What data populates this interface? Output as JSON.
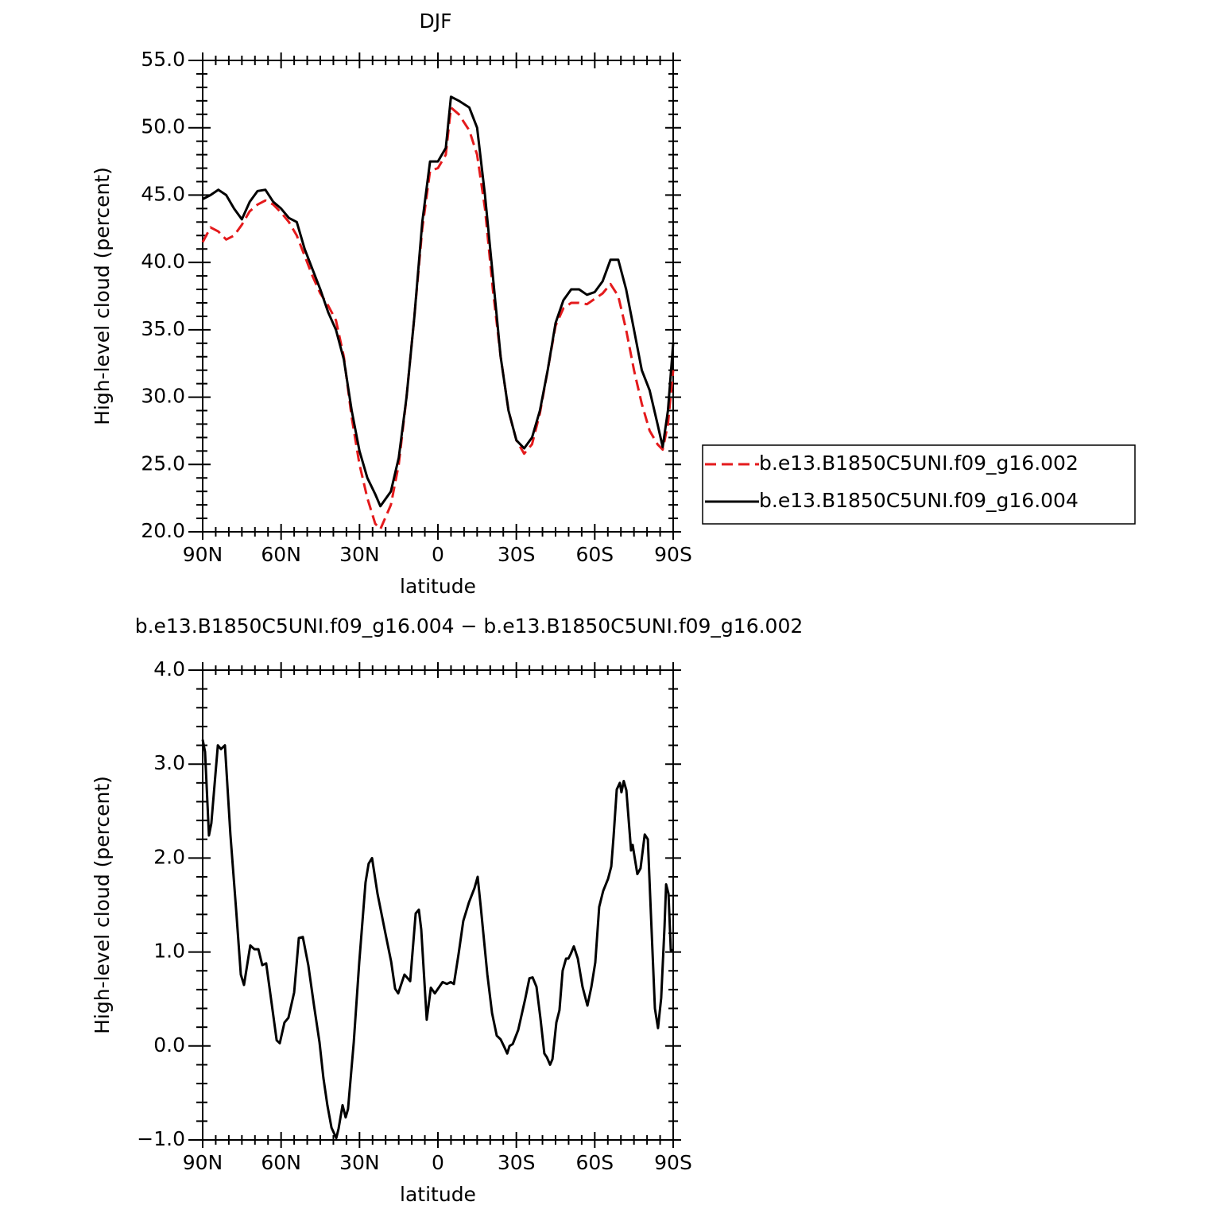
{
  "chart_data": [
    {
      "type": "line",
      "title": "DJF",
      "xlabel": "latitude",
      "ylabel": "High-level cloud (percent)",
      "xlim": [
        90,
        -90
      ],
      "xticks": [
        {
          "value": 90,
          "label": "90N"
        },
        {
          "value": 60,
          "label": "60N"
        },
        {
          "value": 30,
          "label": "30N"
        },
        0,
        {
          "value": -30,
          "label": "30S"
        },
        {
          "value": -60,
          "label": "60S"
        },
        {
          "value": -90,
          "label": "90S"
        }
      ],
      "ylim": [
        20,
        55
      ],
      "yticks": [
        {
          "value": 20,
          "label": "20.0"
        },
        {
          "value": 25,
          "label": "25.0"
        },
        {
          "value": 30,
          "label": "30.0"
        },
        {
          "value": 35,
          "label": "35.0"
        },
        {
          "value": 40,
          "label": "40.0"
        },
        {
          "value": 45,
          "label": "45.0"
        },
        {
          "value": 50,
          "label": "50.0"
        },
        {
          "value": 55,
          "label": "55.0"
        }
      ],
      "legend": "right",
      "x": [
        90,
        87,
        84,
        81,
        78,
        75,
        72,
        69,
        66,
        63,
        60,
        57,
        54,
        51,
        48,
        45,
        42,
        39,
        36,
        33,
        30,
        27,
        24,
        22,
        18,
        15,
        12,
        9,
        6,
        3,
        0,
        -3,
        -5,
        -8,
        -12,
        -15,
        -18,
        -21,
        -24,
        -27,
        -30,
        -33,
        -36,
        -39,
        -42,
        -45,
        -48,
        -51,
        -54,
        -57,
        -60,
        -63,
        -66,
        -69,
        -72,
        -75,
        -78,
        -81,
        -84,
        -86,
        -88,
        -90
      ],
      "series": [
        {
          "name": "b.e13.B1850C5UNI.f09_g16.002",
          "color": "#e41a1c",
          "style": "dashed",
          "values": [
            41.5,
            42.6,
            42.3,
            41.7,
            42.0,
            42.8,
            43.8,
            44.3,
            44.6,
            44.3,
            43.7,
            43.0,
            42.0,
            40.5,
            39.0,
            37.7,
            36.8,
            35.7,
            33.0,
            28.5,
            25.0,
            22.5,
            20.6,
            20.2,
            22.0,
            25.0,
            30.0,
            36.0,
            42.5,
            46.8,
            47.0,
            48.0,
            51.5,
            51.0,
            49.8,
            48.0,
            44.0,
            38.0,
            33.0,
            29.0,
            26.8,
            25.8,
            26.5,
            28.8,
            32.0,
            35.3,
            36.6,
            37.0,
            37.0,
            36.9,
            37.3,
            37.7,
            38.4,
            37.5,
            35.0,
            32.0,
            29.5,
            27.5,
            26.5,
            26.1,
            28.0,
            32.0
          ]
        },
        {
          "name": "b.e13.B1850C5UNI.f09_g16.004",
          "color": "#000000",
          "style": "solid",
          "values": [
            44.7,
            45.0,
            45.4,
            45.0,
            44.0,
            43.2,
            44.5,
            45.3,
            45.4,
            44.5,
            44.0,
            43.3,
            43.0,
            41.0,
            39.5,
            38.0,
            36.3,
            35.0,
            32.8,
            29.0,
            26.0,
            24.0,
            22.8,
            21.9,
            23.0,
            25.5,
            30.0,
            36.0,
            43.0,
            47.5,
            47.5,
            48.5,
            52.3,
            52.0,
            51.5,
            50.0,
            45.0,
            39.0,
            33.0,
            29.0,
            26.8,
            26.2,
            27.0,
            29.0,
            32.0,
            35.5,
            37.2,
            38.0,
            38.0,
            37.6,
            37.8,
            38.6,
            40.2,
            40.2,
            38.0,
            35.0,
            32.0,
            30.5,
            28.0,
            26.3,
            29.0,
            34.0
          ]
        }
      ]
    },
    {
      "type": "line",
      "title": "b.e13.B1850C5UNI.f09_g16.004 − b.e13.B1850C5UNI.f09_g16.002",
      "xlabel": "latitude",
      "ylabel": "High-level cloud (percent)",
      "xlim": [
        90,
        -90
      ],
      "xticks": [
        {
          "value": 90,
          "label": "90N"
        },
        {
          "value": 60,
          "label": "60N"
        },
        {
          "value": 30,
          "label": "30N"
        },
        0,
        {
          "value": -30,
          "label": "30S"
        },
        {
          "value": -60,
          "label": "60S"
        },
        {
          "value": -90,
          "label": "90S"
        }
      ],
      "ylim": [
        -1,
        4
      ],
      "yticks": [
        {
          "value": -1,
          "label": "−1.0"
        },
        {
          "value": 0,
          "label": "0.0"
        },
        {
          "value": 1,
          "label": "1.0"
        },
        {
          "value": 2,
          "label": "2.0"
        },
        {
          "value": 3,
          "label": "3.0"
        },
        {
          "value": 4,
          "label": "4.0"
        }
      ],
      "color": "#000000",
      "x": [
        90,
        89.1,
        87.6,
        86.7,
        84.2,
        83.0,
        81.5,
        79.4,
        77.2,
        75.4,
        74.2,
        71.8,
        70.2,
        68.7,
        67.2,
        65.7,
        64.2,
        61.7,
        60.5,
        58.7,
        57.2,
        55.0,
        53.2,
        51.7,
        49.6,
        47.4,
        45.3,
        43.8,
        42.3,
        40.7,
        38.9,
        38.0,
        36.5,
        35.3,
        34.4,
        32.2,
        30.1,
        27.7,
        26.5,
        25.2,
        23.1,
        20.1,
        17.9,
        16.4,
        15.2,
        12.8,
        10.6,
        8.5,
        7.3,
        6.4,
        4.3,
        2.7,
        1.2,
        -1.8,
        -3.4,
        -4.9,
        -6.1,
        -7.9,
        -9.7,
        -11.9,
        -14.0,
        -15.2,
        -16.4,
        -18.9,
        -20.7,
        -22.5,
        -24.0,
        -25.2,
        -26.5,
        -27.4,
        -28.6,
        -30.7,
        -33.4,
        -35.0,
        -36.2,
        -37.7,
        -39.2,
        -40.7,
        -41.7,
        -42.9,
        -43.8,
        -45.3,
        -46.5,
        -47.7,
        -49.0,
        -49.9,
        -50.8,
        -52.0,
        -53.5,
        -55.3,
        -57.2,
        -58.7,
        -60.2,
        -61.7,
        -63.2,
        -65.1,
        -66.3,
        -67.2,
        -68.4,
        -69.6,
        -70.2,
        -71.1,
        -72.1,
        -73.9,
        -74.5,
        -76.3,
        -77.5,
        -79.1,
        -80.3,
        -81.5,
        -83.0,
        -84.2,
        -85.4,
        -86.7,
        -87.3,
        -88.2,
        -89.1,
        -90
      ],
      "values": [
        3.26,
        3.13,
        2.24,
        2.37,
        3.2,
        3.16,
        3.2,
        2.25,
        1.45,
        0.76,
        0.65,
        1.07,
        1.03,
        1.03,
        0.86,
        0.88,
        0.57,
        0.06,
        0.03,
        0.25,
        0.3,
        0.57,
        1.15,
        1.16,
        0.86,
        0.43,
        0.04,
        -0.34,
        -0.63,
        -0.87,
        -0.98,
        -0.88,
        -0.63,
        -0.76,
        -0.67,
        0.04,
        0.89,
        1.74,
        1.94,
        2.0,
        1.62,
        1.2,
        0.9,
        0.61,
        0.56,
        0.76,
        0.69,
        1.41,
        1.45,
        1.24,
        0.28,
        0.62,
        0.56,
        0.68,
        0.66,
        0.68,
        0.66,
        0.98,
        1.33,
        1.53,
        1.68,
        1.8,
        1.48,
        0.76,
        0.35,
        0.11,
        0.07,
        0.0,
        -0.08,
        0.0,
        0.02,
        0.17,
        0.5,
        0.72,
        0.73,
        0.63,
        0.3,
        -0.08,
        -0.12,
        -0.2,
        -0.14,
        0.25,
        0.38,
        0.8,
        0.93,
        0.93,
        0.98,
        1.06,
        0.93,
        0.63,
        0.43,
        0.63,
        0.89,
        1.48,
        1.65,
        1.78,
        1.91,
        2.23,
        2.73,
        2.8,
        2.7,
        2.82,
        2.72,
        2.08,
        2.14,
        1.83,
        1.89,
        2.25,
        2.2,
        1.4,
        0.4,
        0.19,
        0.51,
        1.27,
        1.72,
        1.62,
        1.02,
        1.02
      ]
    }
  ]
}
